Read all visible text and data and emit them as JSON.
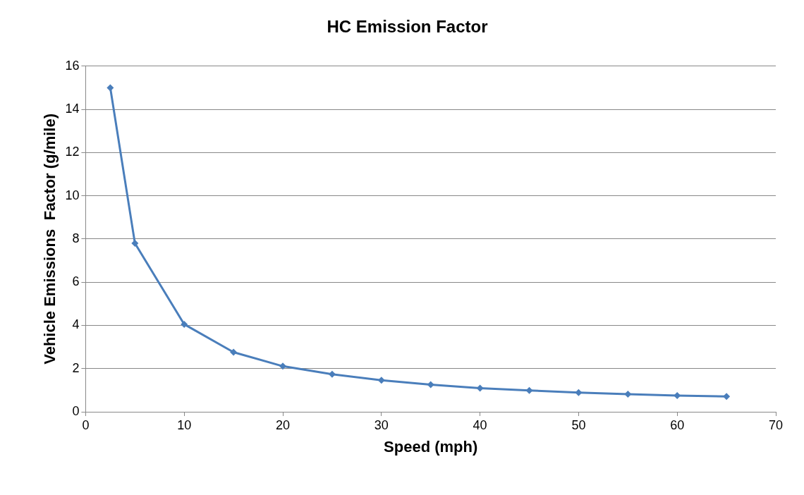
{
  "chart_data": {
    "type": "line",
    "title": "HC Emission Factor",
    "xlabel": "Speed (mph)",
    "ylabel": "Vehicle Emissions  Factor (g/mile)",
    "x": [
      2.5,
      5,
      10,
      15,
      20,
      25,
      30,
      35,
      40,
      45,
      50,
      55,
      60,
      65
    ],
    "series": [
      {
        "color": "#4a7ebb",
        "values": [
          15,
          7.8,
          4.05,
          2.76,
          2.11,
          1.74,
          1.46,
          1.26,
          1.09,
          0.99,
          0.89,
          0.82,
          0.75,
          0.71
        ]
      }
    ],
    "xlim": [
      0,
      70
    ],
    "xticks": [
      0,
      10,
      20,
      30,
      40,
      50,
      60,
      70
    ],
    "ylim": [
      0,
      16
    ],
    "yticks": [
      0,
      2,
      4,
      6,
      8,
      10,
      12,
      14,
      16
    ],
    "grid": "y",
    "legend": false,
    "marker": "diamond",
    "line_style": "solid"
  }
}
